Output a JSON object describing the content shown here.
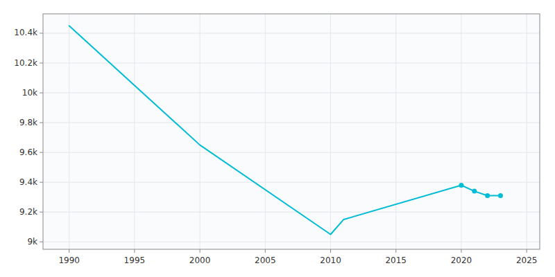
{
  "chart_data": {
    "type": "line",
    "series": [
      {
        "type": "line",
        "color": "#00bcd4",
        "x": [
          1990,
          2000,
          2010,
          2011,
          2020,
          2021,
          2022,
          2023
        ],
        "values": [
          10450,
          9650,
          9050,
          9150,
          9380,
          9340,
          9310,
          9310
        ]
      },
      {
        "type": "scatter",
        "color": "#00bcd4",
        "marker": "circle",
        "x": [
          2020,
          2021,
          2022,
          2023
        ],
        "values": [
          9380,
          9340,
          9310,
          9310
        ]
      }
    ],
    "xlim": [
      1988,
      2026
    ],
    "ylim": [
      8950,
      10530
    ],
    "xticks": [
      1990,
      1995,
      2000,
      2005,
      2010,
      2015,
      2020,
      2025
    ],
    "yticks": [
      {
        "value": 9000,
        "label": "9k"
      },
      {
        "value": 9200,
        "label": "9.2k"
      },
      {
        "value": 9400,
        "label": "9.4k"
      },
      {
        "value": 9600,
        "label": "9.6k"
      },
      {
        "value": 9800,
        "label": "9.8k"
      },
      {
        "value": 10000,
        "label": "10k"
      },
      {
        "value": 10200,
        "label": "10.2k"
      },
      {
        "value": 10400,
        "label": "10.4k"
      }
    ],
    "grid": true
  }
}
